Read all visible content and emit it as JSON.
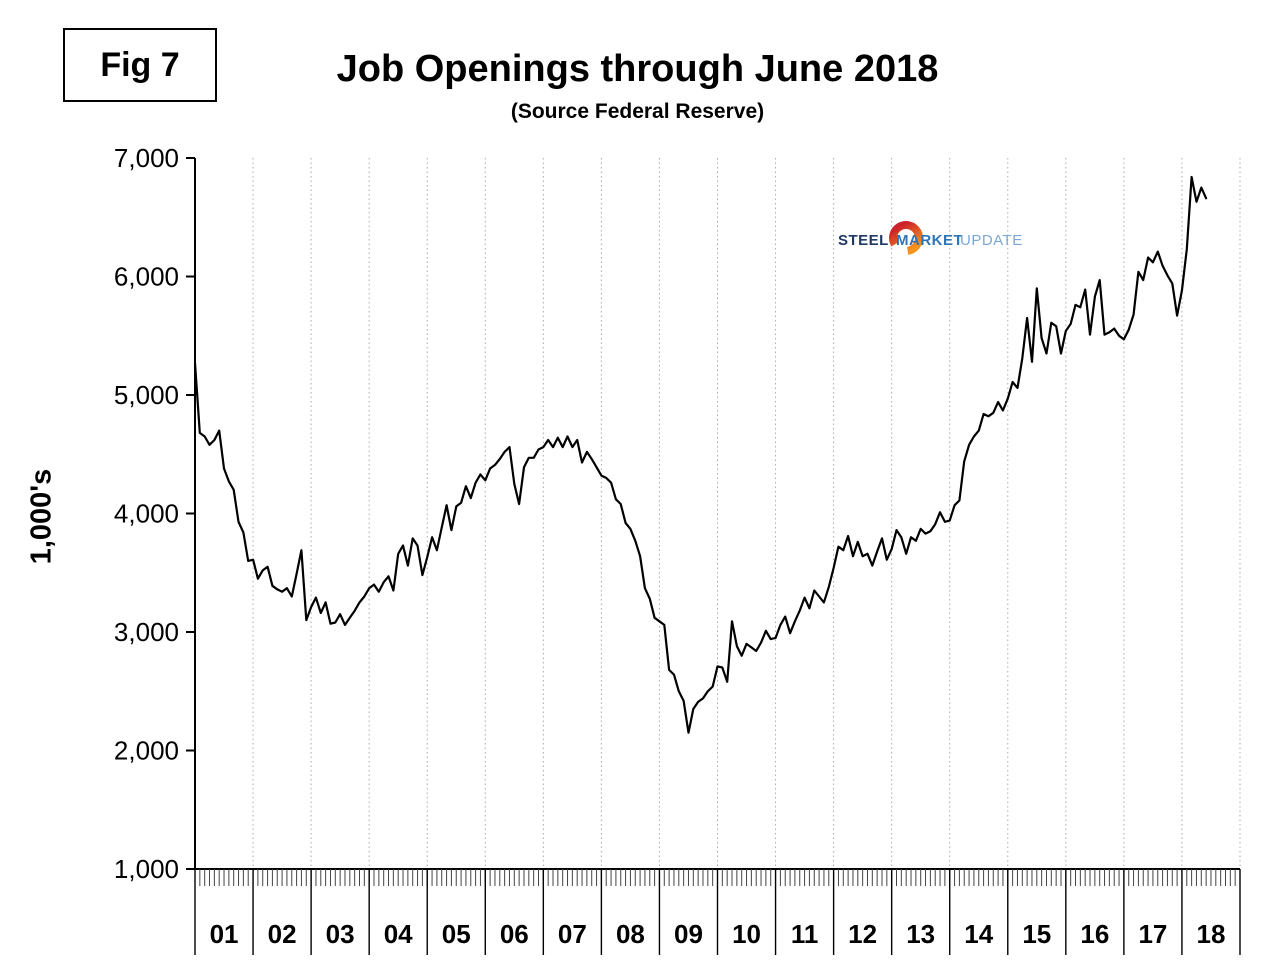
{
  "figure_label": "Fig 7",
  "title": "Job Openings through June 2018",
  "subtitle": "(Source Federal Reserve)",
  "y_axis_title": "1,000's",
  "logo": {
    "steel": "STEEL",
    "market": "MARKET",
    "update": "UPDATE",
    "orange_start": "#f7941d",
    "orange_end": "#cc2229",
    "navy": "#1f3864",
    "blue": "#2e75b6",
    "light_blue": "#7ba7d7"
  },
  "colors": {
    "line": "#000000",
    "gridline": "#aaaaaa",
    "axis": "#000000",
    "text": "#000000"
  },
  "chart_data": {
    "type": "line",
    "title": "Job Openings through June 2018",
    "subtitle": "(Source Federal Reserve)",
    "xlabel": "",
    "ylabel": "1,000's",
    "ylim": [
      1000,
      7000
    ],
    "y_ticks": [
      1000,
      2000,
      3000,
      4000,
      5000,
      6000,
      7000
    ],
    "x_year_labels": [
      "01",
      "02",
      "03",
      "04",
      "05",
      "06",
      "07",
      "08",
      "09",
      "10",
      "11",
      "12",
      "13",
      "14",
      "15",
      "16",
      "17",
      "18"
    ],
    "start_month": "2001-01",
    "end_month": "2018-06",
    "grid": "vertical-dotted",
    "legend": "none",
    "series": [
      {
        "name": "Job Openings (1,000's)",
        "values": [
          5270,
          4680,
          4650,
          4580,
          4620,
          4700,
          4380,
          4270,
          4200,
          3930,
          3840,
          3600,
          3610,
          3450,
          3520,
          3550,
          3390,
          3360,
          3340,
          3370,
          3300,
          3490,
          3690,
          3100,
          3210,
          3290,
          3160,
          3250,
          3070,
          3080,
          3150,
          3060,
          3120,
          3180,
          3250,
          3300,
          3370,
          3400,
          3340,
          3420,
          3470,
          3350,
          3660,
          3730,
          3560,
          3790,
          3730,
          3480,
          3630,
          3800,
          3690,
          3880,
          4070,
          3860,
          4060,
          4090,
          4230,
          4130,
          4260,
          4330,
          4280,
          4380,
          4410,
          4460,
          4520,
          4560,
          4250,
          4080,
          4390,
          4470,
          4470,
          4540,
          4560,
          4620,
          4560,
          4640,
          4560,
          4650,
          4560,
          4620,
          4430,
          4520,
          4460,
          4390,
          4320,
          4300,
          4260,
          4120,
          4080,
          3920,
          3870,
          3770,
          3640,
          3370,
          3280,
          3120,
          3090,
          3060,
          2680,
          2640,
          2500,
          2420,
          2150,
          2350,
          2410,
          2440,
          2500,
          2540,
          2710,
          2700,
          2580,
          3090,
          2880,
          2800,
          2900,
          2870,
          2840,
          2910,
          3010,
          2940,
          2950,
          3060,
          3130,
          2990,
          3090,
          3180,
          3290,
          3200,
          3350,
          3300,
          3250,
          3380,
          3540,
          3720,
          3690,
          3810,
          3640,
          3760,
          3640,
          3660,
          3560,
          3680,
          3790,
          3610,
          3700,
          3860,
          3800,
          3660,
          3800,
          3770,
          3870,
          3830,
          3850,
          3910,
          4010,
          3930,
          3940,
          4070,
          4110,
          4440,
          4580,
          4650,
          4700,
          4840,
          4820,
          4850,
          4940,
          4870,
          4970,
          5110,
          5060,
          5310,
          5650,
          5280,
          5900,
          5480,
          5350,
          5610,
          5580,
          5350,
          5540,
          5600,
          5760,
          5740,
          5890,
          5510,
          5830,
          5970,
          5510,
          5530,
          5560,
          5500,
          5470,
          5550,
          5680,
          6040,
          5970,
          6160,
          6120,
          6210,
          6090,
          6010,
          5940,
          5670,
          5880,
          6230,
          6840,
          6630,
          6750,
          6660
        ]
      }
    ]
  }
}
